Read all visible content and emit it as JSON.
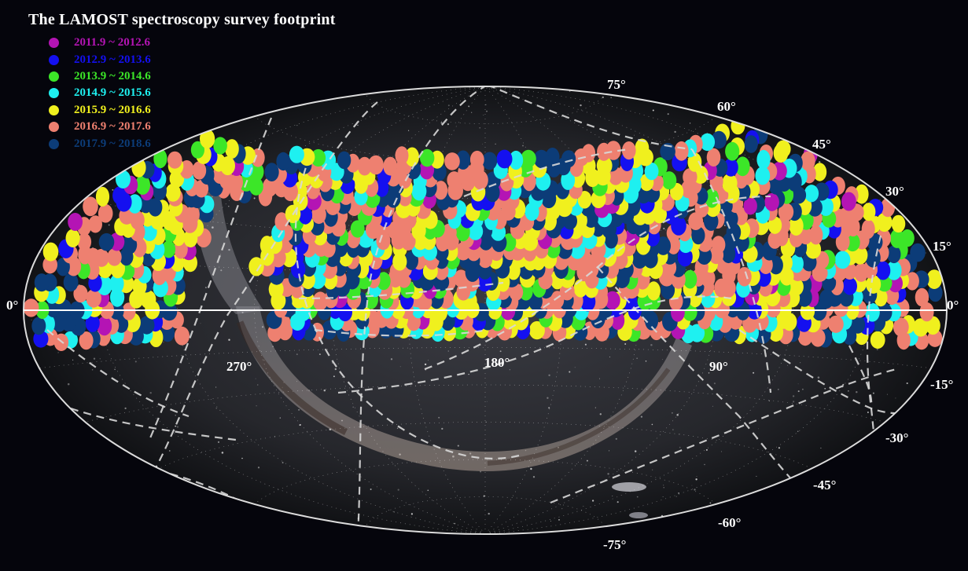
{
  "title": "The LAMOST spectroscopy survey footprint",
  "legend": [
    {
      "label": "2011.9 ~ 2012.6",
      "color": "#b414b4"
    },
    {
      "label": "2012.9 ~ 2013.6",
      "color": "#1410f0"
    },
    {
      "label": "2013.9 ~ 2014.6",
      "color": "#3ce628"
    },
    {
      "label": "2014.9 ~ 2015.6",
      "color": "#1ef0f0"
    },
    {
      "label": "2015.9 ~ 2016.6",
      "color": "#f0f01e"
    },
    {
      "label": "2016.9 ~ 2017.6",
      "color": "#ee8070"
    },
    {
      "label": "2017.9 ~ 2018.6",
      "color": "#0c3c78"
    }
  ],
  "dec_labels": {
    "d75": "75°",
    "d60": "60°",
    "d45": "45°",
    "d30": "30°",
    "d15": "15°",
    "d0l": "0°",
    "d0r": "0°",
    "dm15": "-15°",
    "dm30": "-30°",
    "dm45": "-45°",
    "dm60": "-60°",
    "dm75": "-75°"
  },
  "ra_labels": {
    "r270": "270°",
    "r180": "180°",
    "r90": "90°"
  },
  "projection": "Aitoff (equatorial)",
  "background": "Milky Way all-sky image",
  "footprint_extent": "Dec -10° to +60°"
}
